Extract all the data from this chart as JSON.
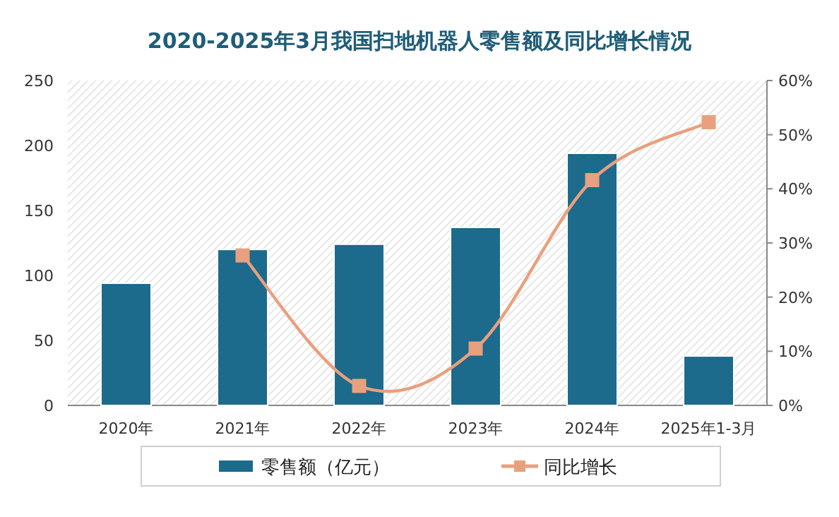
{
  "chart_data": {
    "type": "bar",
    "title": "2020-2025年3月我国扫地机器人零售额及同比增长情况",
    "categories": [
      "2020年",
      "2021年",
      "2022年",
      "2023年",
      "2024年",
      "2025年1-3月"
    ],
    "series": [
      {
        "name": "零售额（亿元）",
        "color": "#1c6a8c",
        "values": [
          94,
          120,
          124,
          137,
          194,
          38
        ]
      },
      {
        "name": "同比增长",
        "type": "line",
        "axis": "y2",
        "color": "#e9a07e",
        "marker": "square",
        "values": [
          null,
          27.7,
          3.6,
          10.5,
          41.6,
          52.3
        ]
      }
    ],
    "ylim": [
      0,
      250
    ],
    "yticks": [
      0,
      50,
      100,
      150,
      200,
      250
    ],
    "y2lim": [
      0,
      60
    ],
    "y2ticks": [
      {
        "value": 0,
        "label": "0%"
      },
      {
        "value": 10,
        "label": "10%"
      },
      {
        "value": 20,
        "label": "20%"
      },
      {
        "value": 30,
        "label": "30%"
      },
      {
        "value": 40,
        "label": "40%"
      },
      {
        "value": 50,
        "label": "50%"
      },
      {
        "value": 60,
        "label": "60%"
      }
    ],
    "legend": "bottom",
    "grid": false
  }
}
